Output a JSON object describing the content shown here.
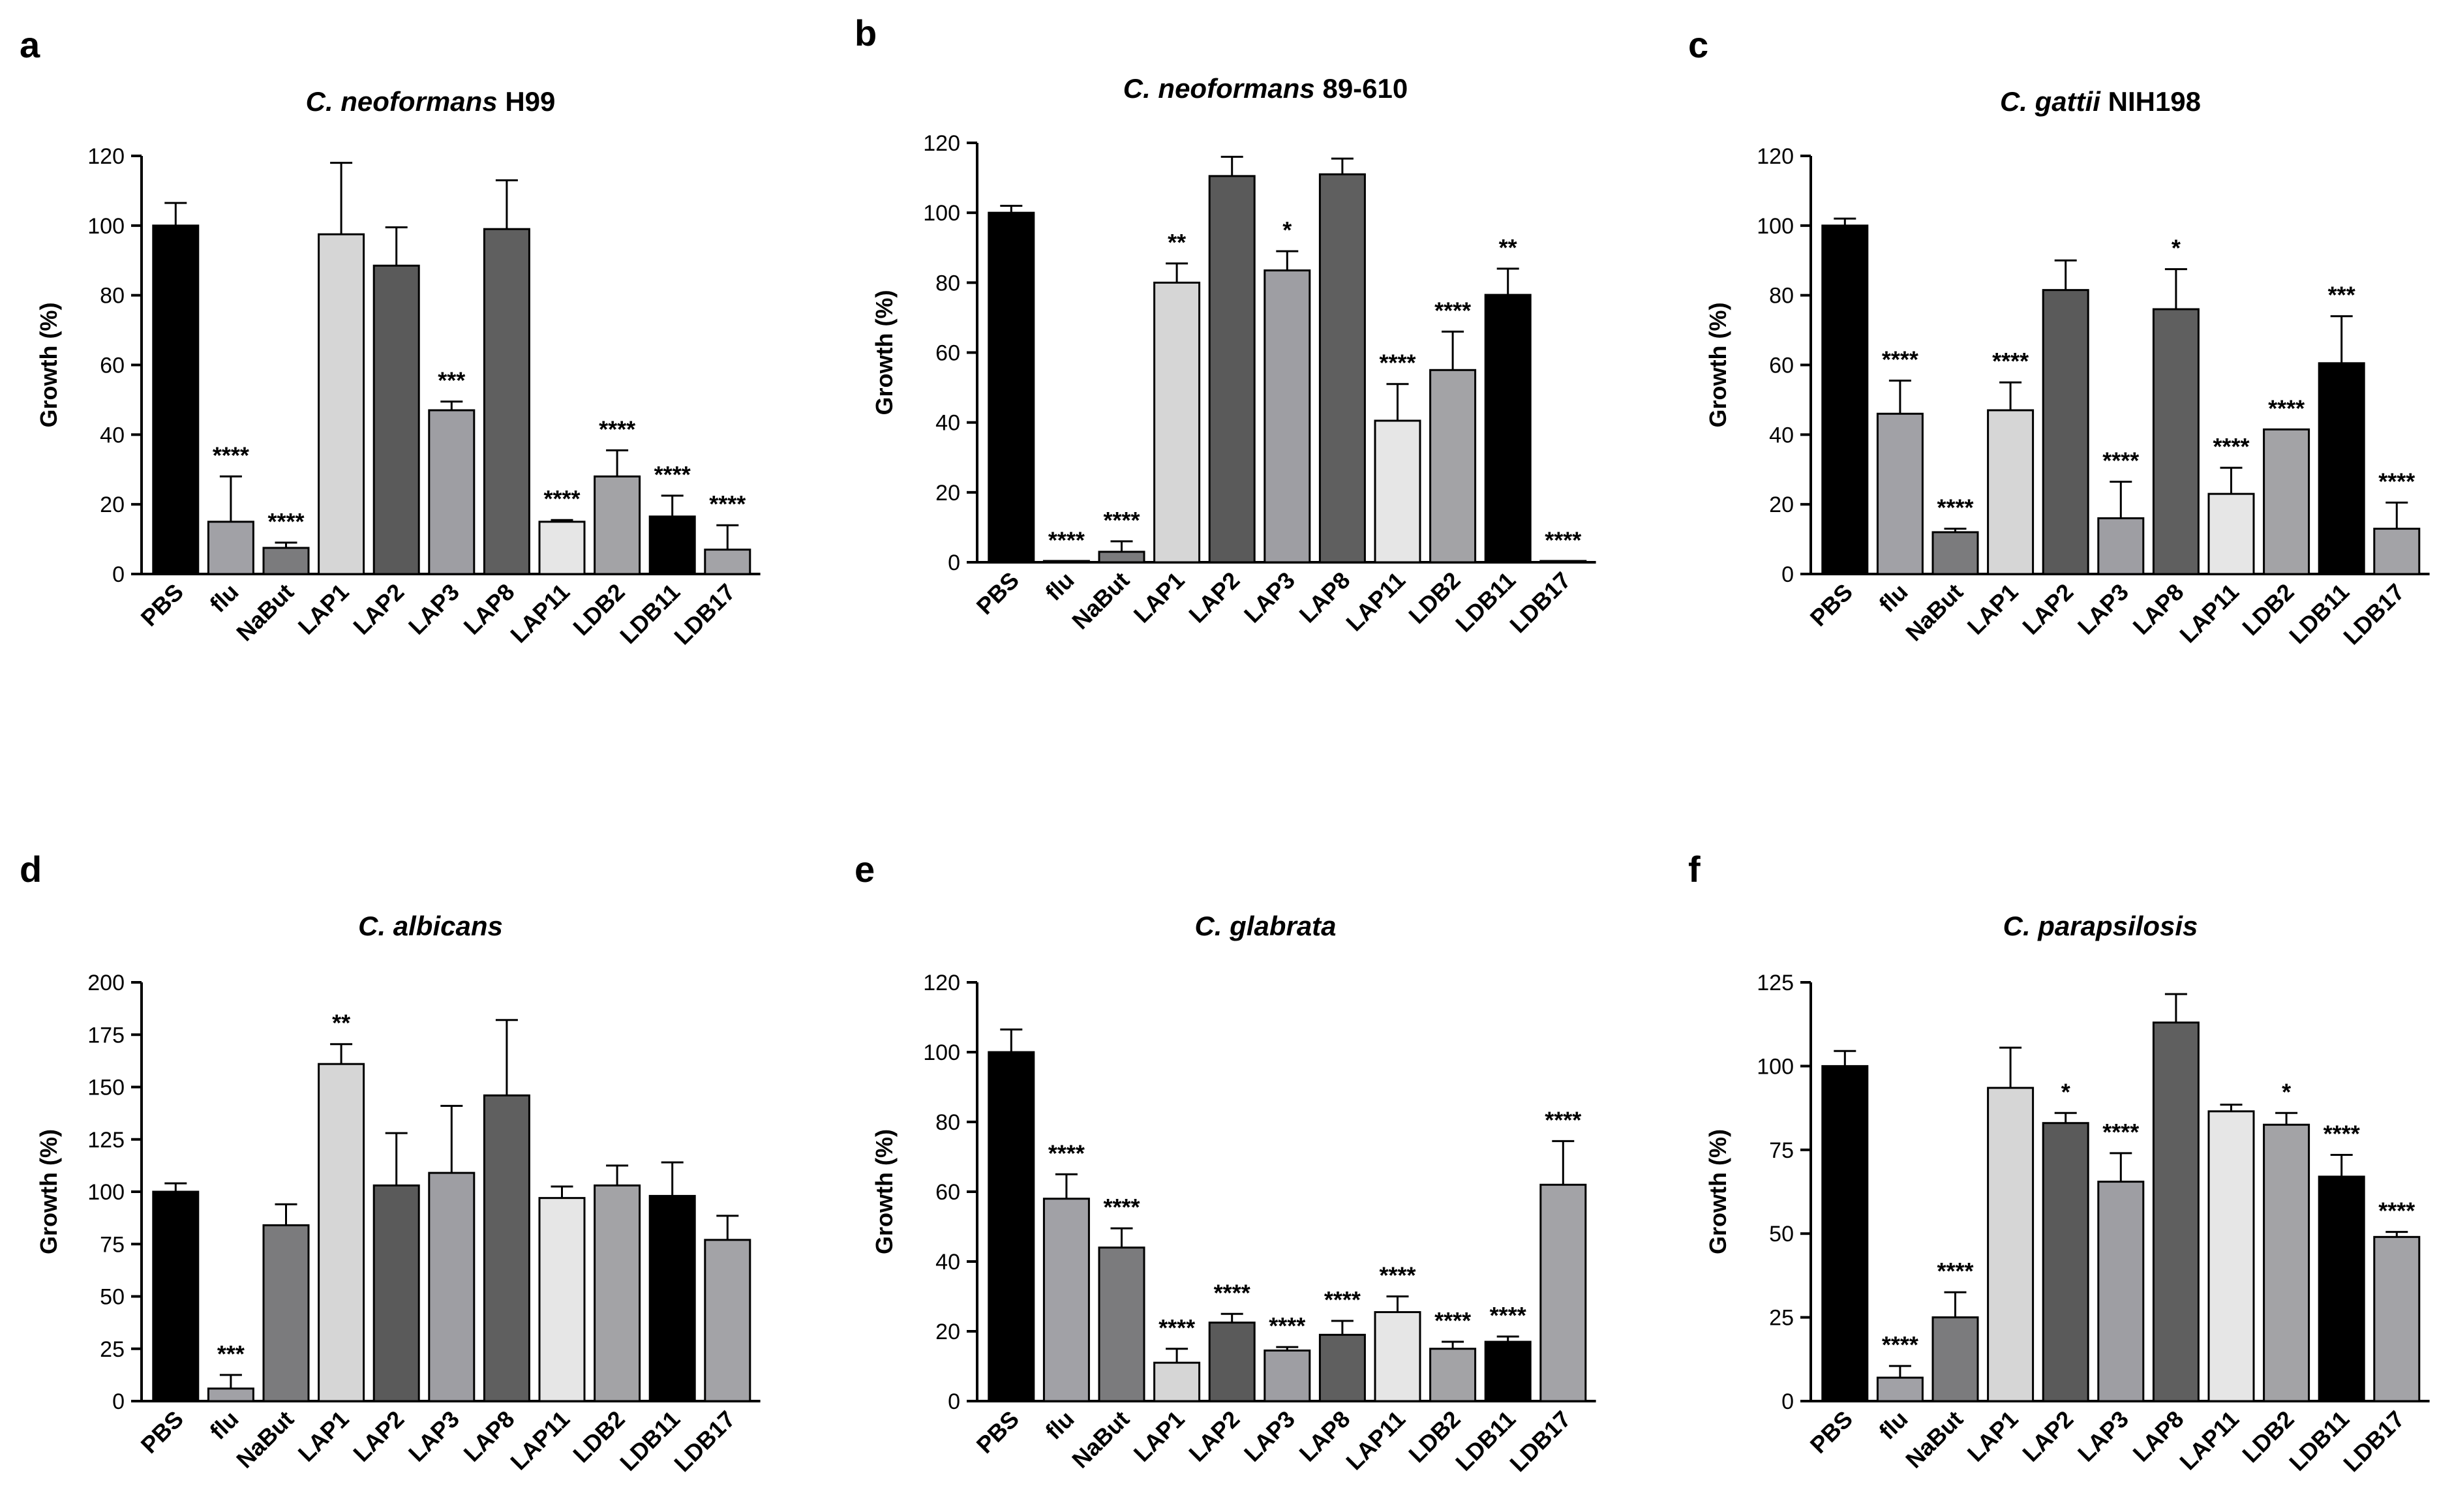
{
  "bar_colors": {
    "PBS": "#000000",
    "flu": "#a1a1a6",
    "NaBut": "#7b7b7d",
    "LAP1": "#d6d6d6",
    "LAP2": "#5a5a5a",
    "LAP3": "#9e9ea3",
    "LAP8": "#5f5f5f",
    "LAP11": "#e6e6e6",
    "LDB2": "#a3a3a6",
    "LDB11": "#000000",
    "LDB17": "#a3a3a7"
  },
  "chart_data": [
    {
      "panel": "a",
      "type": "bar",
      "title_italic": "C. neoformans",
      "title_rest": " H99",
      "ylabel": "Growth (%)",
      "ylim": [
        0,
        120
      ],
      "yticks": [
        "0",
        "20",
        "40",
        "60",
        "80",
        "100",
        "120"
      ],
      "categories": [
        "PBS",
        "flu",
        "NaBut",
        "LAP1",
        "LAP2",
        "LAP3",
        "LAP8",
        "LAP11",
        "LDB2",
        "LDB11",
        "LDB17"
      ],
      "values": [
        100,
        15,
        7.5,
        97.5,
        88.5,
        47,
        99,
        15,
        28,
        16.5,
        7
      ],
      "errors": [
        6.5,
        13,
        1.5,
        20.5,
        11,
        2.5,
        14,
        0.5,
        7.5,
        6,
        7
      ],
      "significance": [
        "",
        "****",
        "****",
        "",
        "",
        "***",
        "",
        "****",
        "****",
        "****",
        "****"
      ]
    },
    {
      "panel": "b",
      "type": "bar",
      "title_italic": "C. neoformans",
      "title_rest": " 89-610",
      "ylabel": "Growth (%)",
      "ylim": [
        0,
        120
      ],
      "yticks": [
        "0",
        "20",
        "40",
        "60",
        "80",
        "100",
        "120"
      ],
      "categories": [
        "PBS",
        "flu",
        "NaBut",
        "LAP1",
        "LAP2",
        "LAP3",
        "LAP8",
        "LAP11",
        "LDB2",
        "LDB11",
        "LDB17"
      ],
      "values": [
        100,
        0.3,
        3,
        80,
        110.5,
        83.5,
        111,
        40.5,
        55,
        76.5,
        0.3
      ],
      "errors": [
        2,
        0,
        3,
        5.5,
        5.5,
        5.5,
        4.5,
        10.5,
        11,
        7.5,
        0
      ],
      "significance": [
        "",
        "****",
        "****",
        "**",
        "",
        "*",
        "",
        "****",
        "****",
        "**",
        "****"
      ]
    },
    {
      "panel": "c",
      "type": "bar",
      "title_italic": "C. gattii",
      "title_rest": " NIH198",
      "ylabel": "Growth (%)",
      "ylim": [
        0,
        120
      ],
      "yticks": [
        "0",
        "20",
        "40",
        "60",
        "80",
        "100",
        "120"
      ],
      "categories": [
        "PBS",
        "flu",
        "NaBut",
        "LAP1",
        "LAP2",
        "LAP3",
        "LAP8",
        "LAP11",
        "LDB2",
        "LDB11",
        "LDB17"
      ],
      "values": [
        100,
        46,
        12,
        47,
        81.5,
        16,
        76,
        23,
        41.5,
        60.5,
        13
      ],
      "errors": [
        2,
        9.5,
        1,
        8,
        8.5,
        10.5,
        11.5,
        7.5,
        0,
        13.5,
        7.5
      ],
      "significance": [
        "",
        "****",
        "****",
        "****",
        "",
        "****",
        "*",
        "****",
        "****",
        "***",
        "****"
      ]
    },
    {
      "panel": "d",
      "type": "bar",
      "title_italic": "C. albicans",
      "title_rest": "",
      "ylabel": "Growth (%)",
      "ylim": [
        0,
        200
      ],
      "yticks": [
        "0",
        "25",
        "50",
        "75",
        "100",
        "125",
        "150",
        "175",
        "200"
      ],
      "categories": [
        "PBS",
        "flu",
        "NaBut",
        "LAP1",
        "LAP2",
        "LAP3",
        "LAP8",
        "LAP11",
        "LDB2",
        "LDB11",
        "LDB17"
      ],
      "values": [
        100,
        6,
        84,
        161,
        103,
        109,
        146,
        97,
        103,
        98,
        77
      ],
      "errors": [
        4,
        6.5,
        10,
        9.5,
        25,
        32,
        36,
        5.5,
        9.5,
        16,
        11.5
      ],
      "significance": [
        "",
        "***",
        "",
        "**",
        "",
        "",
        "",
        "",
        "",
        "",
        ""
      ]
    },
    {
      "panel": "e",
      "type": "bar",
      "title_italic": "C. glabrata",
      "title_rest": "",
      "ylabel": "Growth (%)",
      "ylim": [
        0,
        120
      ],
      "yticks": [
        "0",
        "20",
        "40",
        "60",
        "80",
        "100",
        "120"
      ],
      "categories": [
        "PBS",
        "flu",
        "NaBut",
        "LAP1",
        "LAP2",
        "LAP3",
        "LAP8",
        "LAP11",
        "LDB2",
        "LDB11",
        "LDB17"
      ],
      "values": [
        100,
        58,
        44,
        11,
        22.5,
        14.5,
        19,
        25.5,
        15,
        17,
        62
      ],
      "errors": [
        6.5,
        7,
        5.5,
        4,
        2.5,
        1,
        4,
        4.5,
        2,
        1.5,
        12.5
      ],
      "significance": [
        "",
        "****",
        "****",
        "****",
        "****",
        "****",
        "****",
        "****",
        "****",
        "****",
        "****"
      ]
    },
    {
      "panel": "f",
      "type": "bar",
      "title_italic": "C. parapsilosis",
      "title_rest": "",
      "ylabel": "Growth (%)",
      "ylim": [
        0,
        125
      ],
      "yticks": [
        "0",
        "25",
        "50",
        "75",
        "100",
        "125"
      ],
      "categories": [
        "PBS",
        "flu",
        "NaBut",
        "LAP1",
        "LAP2",
        "LAP3",
        "LAP8",
        "LAP11",
        "LDB2",
        "LDB11",
        "LDB17"
      ],
      "values": [
        100,
        7,
        25,
        93.5,
        83,
        65.5,
        113,
        86.5,
        82.5,
        67,
        49
      ],
      "errors": [
        4.5,
        3.5,
        7.5,
        12,
        3,
        8.5,
        8.5,
        2,
        3.5,
        6.5,
        1.5
      ],
      "significance": [
        "",
        "****",
        "****",
        "",
        "*",
        "****",
        "",
        "",
        "*",
        "****",
        "****"
      ]
    }
  ]
}
